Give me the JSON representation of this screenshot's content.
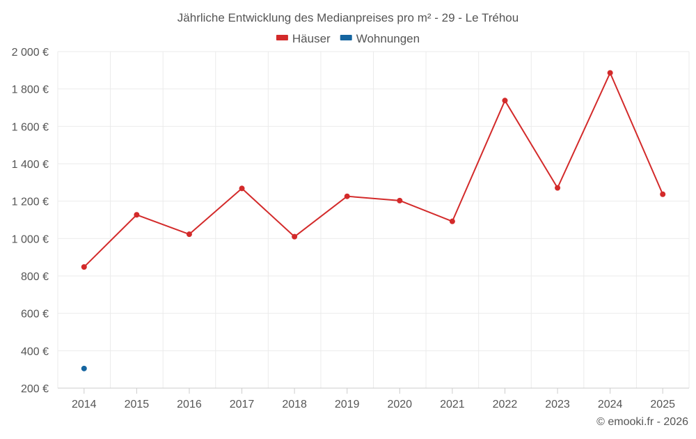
{
  "chart_data": {
    "type": "line",
    "title": "Jährliche Entwicklung des Medianpreises pro m² - 29 - Le Tréhou",
    "categories": [
      "2014",
      "2015",
      "2016",
      "2017",
      "2018",
      "2019",
      "2020",
      "2021",
      "2022",
      "2023",
      "2024",
      "2025"
    ],
    "series": [
      {
        "name": "Häuser",
        "color": "#d32a2a",
        "values": [
          848,
          1127,
          1023,
          1268,
          1010,
          1226,
          1203,
          1092,
          1738,
          1271,
          1886,
          1237
        ]
      },
      {
        "name": "Wohnungen",
        "color": "#1565a0",
        "values": [
          305,
          null,
          null,
          null,
          null,
          null,
          null,
          null,
          null,
          null,
          null,
          null
        ]
      }
    ],
    "y_ticks": [
      "200 €",
      "400 €",
      "600 €",
      "800 €",
      "1 000 €",
      "1 200 €",
      "1 400 €",
      "1 600 €",
      "1 800 €",
      "2 000 €"
    ],
    "y_tick_values": [
      200,
      400,
      600,
      800,
      1000,
      1200,
      1400,
      1600,
      1800,
      2000
    ],
    "ylim": [
      200,
      2000
    ],
    "grid": true,
    "legend_position": "top-center",
    "xlabel": "",
    "ylabel": ""
  },
  "credit": "© emooki.fr - 2026"
}
